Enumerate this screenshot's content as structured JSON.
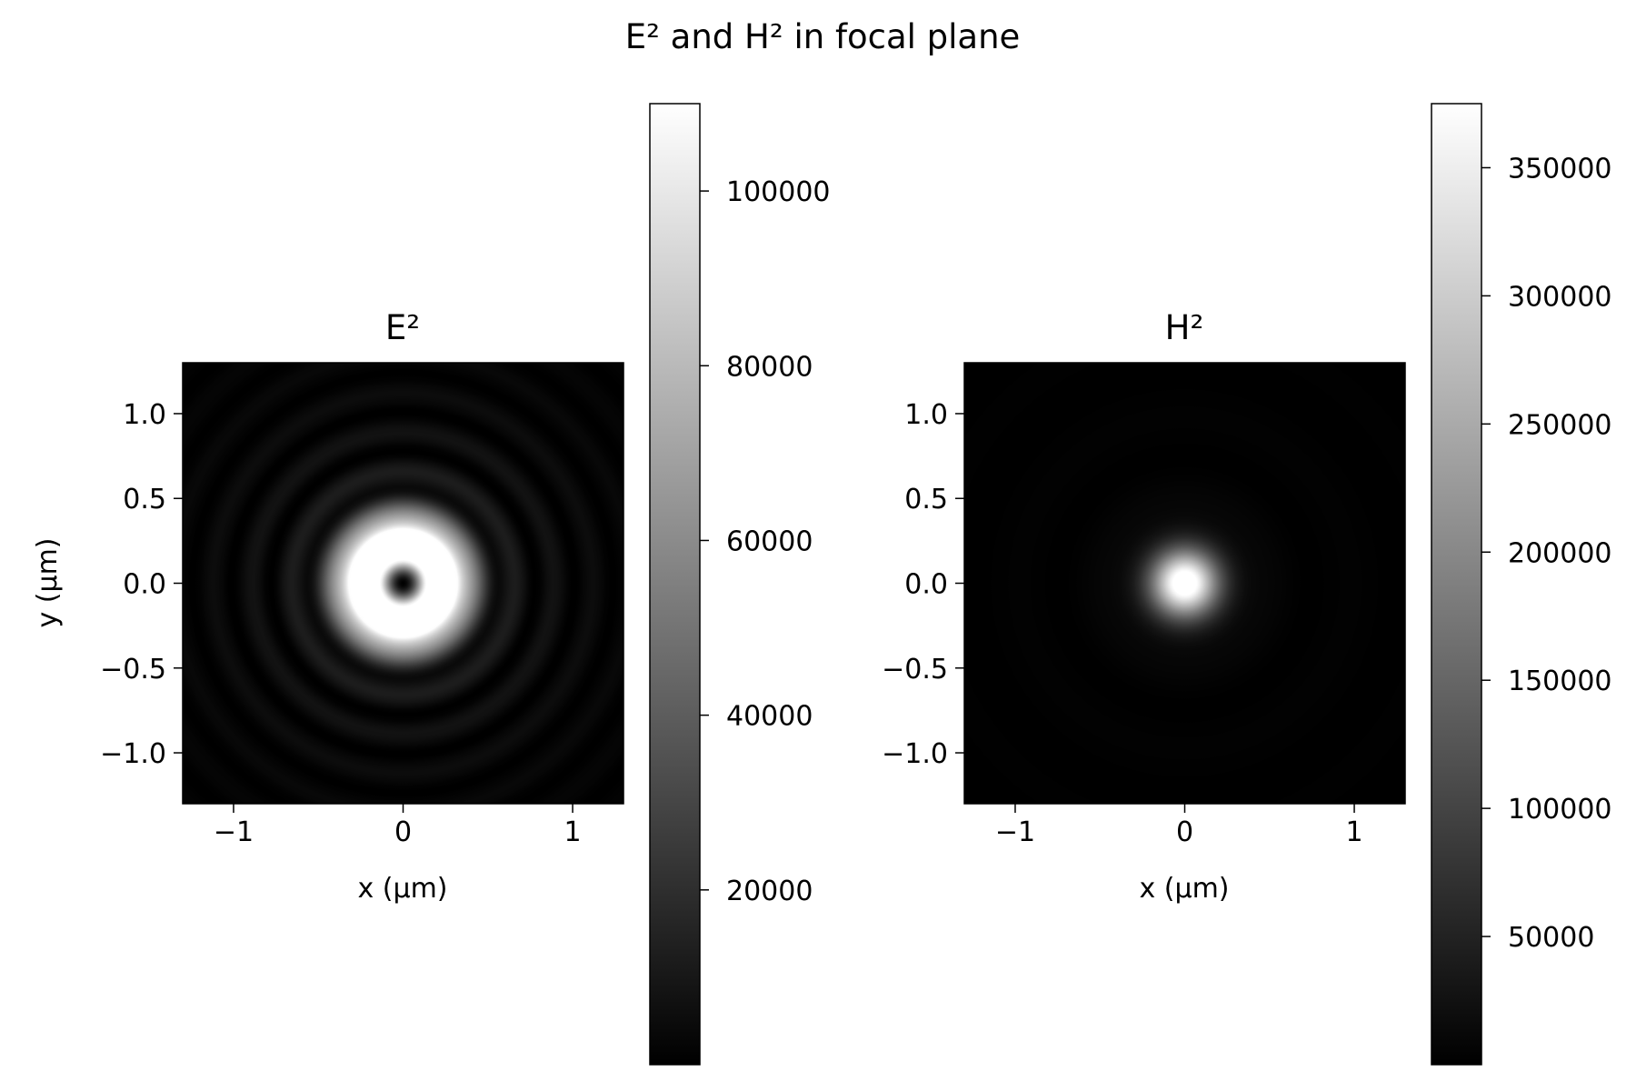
{
  "chart_data": {
    "type": "heatmap",
    "title": "E² and H² in focal plane",
    "colormap": "gray",
    "panels": [
      {
        "title": "E²",
        "field": "electric",
        "pattern": "ring",
        "xlabel": "x (µm)",
        "ylabel": "y (µm)",
        "xlim": [
          -1.3,
          1.3
        ],
        "ylim": [
          -1.3,
          1.3
        ],
        "xticks": [
          -1,
          0,
          1
        ],
        "xtick_labels": [
          "−1",
          "0",
          "1"
        ],
        "yticks": [
          1.0,
          0.5,
          0.0,
          -0.5,
          -1.0
        ],
        "ytick_labels": [
          "1.0",
          "0.5",
          "0.0",
          "−0.5",
          "−1.0"
        ],
        "peak_radius": 0.22,
        "value_range": [
          0,
          110000
        ],
        "colorbar": {
          "range": [
            0,
            110000
          ],
          "ticks": [
            20000,
            40000,
            60000,
            80000,
            100000
          ],
          "tick_labels": [
            "20000",
            "40000",
            "60000",
            "80000",
            "100000"
          ]
        }
      },
      {
        "title": "H²",
        "field": "magnetic",
        "pattern": "spot",
        "xlabel": "x (µm)",
        "ylabel": "",
        "xlim": [
          -1.3,
          1.3
        ],
        "ylim": [
          -1.3,
          1.3
        ],
        "xticks": [
          -1,
          0,
          1
        ],
        "xtick_labels": [
          "−1",
          "0",
          "1"
        ],
        "yticks": [
          1.0,
          0.5,
          0.0,
          -0.5,
          -1.0
        ],
        "ytick_labels": [
          "1.0",
          "0.5",
          "0.0",
          "−0.5",
          "−1.0"
        ],
        "peak_radius": 0.0,
        "value_range": [
          0,
          375000
        ],
        "colorbar": {
          "range": [
            0,
            375000
          ],
          "ticks": [
            50000,
            100000,
            150000,
            200000,
            250000,
            300000,
            350000
          ],
          "tick_labels": [
            "50000",
            "100000",
            "150000",
            "200000",
            "250000",
            "300000",
            "350000"
          ]
        }
      }
    ]
  }
}
